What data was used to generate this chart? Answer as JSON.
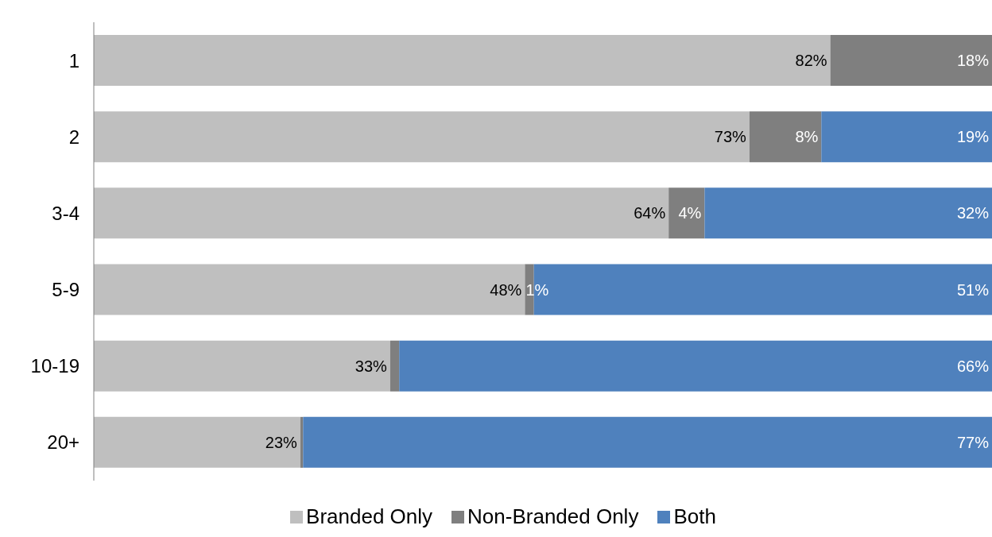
{
  "chart_data": {
    "type": "bar",
    "orientation": "horizontal",
    "stacked": true,
    "categories": [
      "1",
      "2",
      "3-4",
      "5-9",
      "10-19",
      "20+"
    ],
    "xlim": [
      0,
      100
    ],
    "tick_labels": "y",
    "grid": false,
    "legend": "bottom",
    "series": [
      {
        "name": "Branded Only",
        "color": "#bfbfbf",
        "values": [
          82,
          73,
          64,
          48,
          33,
          23
        ],
        "value_labels": [
          "82%",
          "73%",
          "64%",
          "48%",
          "33%",
          "23%"
        ]
      },
      {
        "name": "Non-Branded Only",
        "color": "#7f7f7f",
        "values": [
          18,
          8,
          4,
          1,
          1,
          0.3
        ],
        "value_labels": [
          "18%",
          "8%",
          "4%",
          "1%",
          null,
          null
        ]
      },
      {
        "name": "Both",
        "color": "#4f81bd",
        "values": [
          0,
          19,
          32,
          51,
          66,
          77
        ],
        "value_labels": [
          null,
          "19%",
          "32%",
          "51%",
          "66%",
          "77%"
        ]
      }
    ]
  }
}
